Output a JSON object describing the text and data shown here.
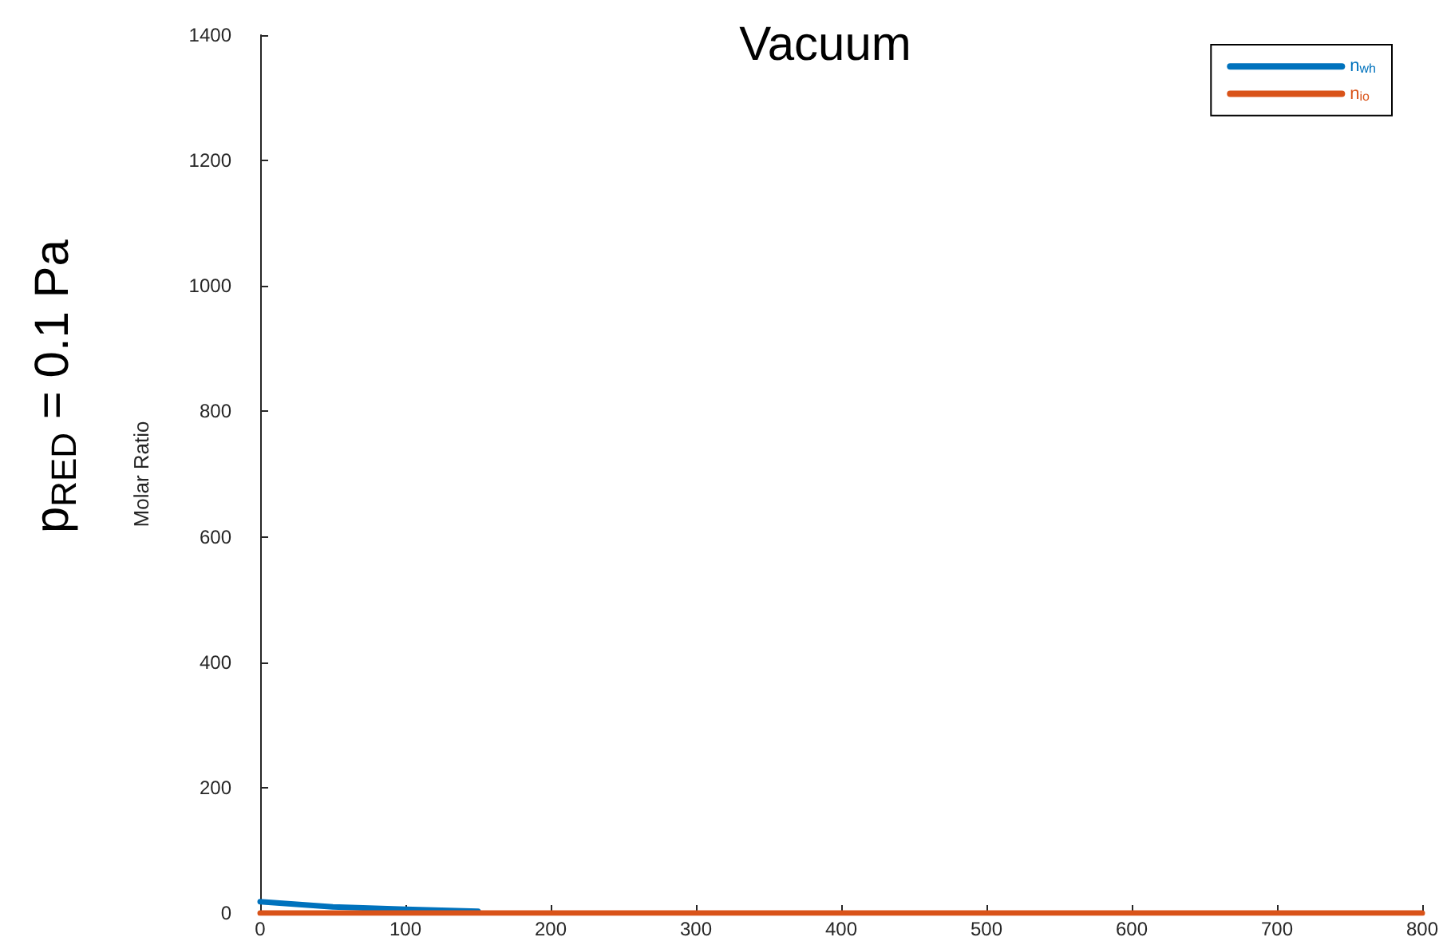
{
  "chart_data": {
    "type": "line",
    "title": "Vacuum",
    "ylabel": "Molar Ratio",
    "annotations": [
      "p$_{RED}$ = 0.1 Pa"
    ],
    "x": [
      0,
      25,
      50,
      75,
      100,
      150,
      200,
      250,
      300,
      400,
      500,
      600,
      700,
      800
    ],
    "series": [
      {
        "name": "n$_{wh}$",
        "color": "#0072bd",
        "values": [
          18,
          14,
          10,
          8,
          6,
          3,
          null,
          null,
          null,
          null,
          null,
          null,
          null,
          null
        ]
      },
      {
        "name": "n$_{io}$",
        "color": "#d95319",
        "values": [
          0,
          0,
          0,
          0,
          0,
          0,
          0,
          0,
          0,
          0,
          0,
          0,
          0,
          0
        ]
      }
    ],
    "xlim": [
      0,
      800
    ],
    "xticks": [
      0,
      100,
      200,
      300,
      400,
      500,
      600,
      700,
      800
    ],
    "ylim": [
      0,
      1400
    ],
    "yticks": [
      0,
      200,
      400,
      600,
      800,
      {
        "value": 1000,
        "label": "1000"
      },
      {
        "value": 1200,
        "label": "1200"
      },
      {
        "value": 1400,
        "label": "1400"
      }
    ],
    "grid": false,
    "legend": "top right",
    "marker": "none",
    "line_style": "solid"
  }
}
